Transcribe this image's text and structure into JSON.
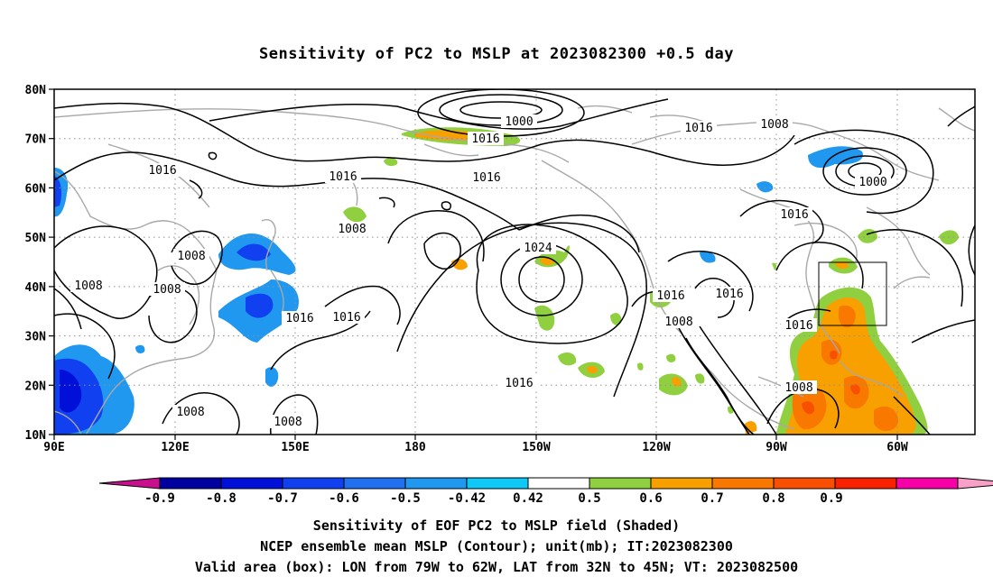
{
  "title": "Sensitivity of PC2 to MSLP at 2023082300 +0.5 day",
  "captions": {
    "line1": "Sensitivity of EOF PC2 to MSLP field (Shaded)",
    "line2": "NCEP ensemble mean MSLP (Contour); unit(mb); IT:2023082300",
    "line3": "Valid area (box): LON from 79W to 62W, LAT from 32N to 45N; VT: 2023082500"
  },
  "axes": {
    "lat_labels": [
      "80N",
      "70N",
      "60N",
      "50N",
      "40N",
      "30N",
      "20N",
      "10N"
    ],
    "lon_labels": [
      "90E",
      "120E",
      "150E",
      "180",
      "150W",
      "120W",
      "90W",
      "60W"
    ]
  },
  "colorbar": {
    "labels": [
      "-0.9",
      "-0.8",
      "-0.7",
      "-0.6",
      "-0.5",
      "-0.42",
      "0.42",
      "0.5",
      "0.6",
      "0.7",
      "0.8",
      "0.9"
    ],
    "colors": [
      "#c8108c",
      "#0000a0",
      "#0010d8",
      "#1040f0",
      "#2070f0",
      "#2098f0",
      "#10c8f8",
      "#ffffff",
      "#90d040",
      "#f8a000",
      "#f87800",
      "#f85000",
      "#f82000",
      "#f800a8",
      "#f8a0c8"
    ]
  },
  "valid_box": {
    "lon_from": "79W",
    "lon_to": "62W",
    "lat_from": "32N",
    "lat_to": "45N"
  },
  "contour_labels": [
    "1000",
    "1016",
    "1016",
    "1008",
    "1000",
    "1016",
    "1016",
    "1016",
    "1008",
    "1024",
    "1008",
    "1008",
    "1008",
    "1016",
    "1016",
    "1016",
    "1016",
    "1008",
    "1016",
    "1016",
    "1008",
    "1008",
    "1008",
    "1016"
  ]
}
